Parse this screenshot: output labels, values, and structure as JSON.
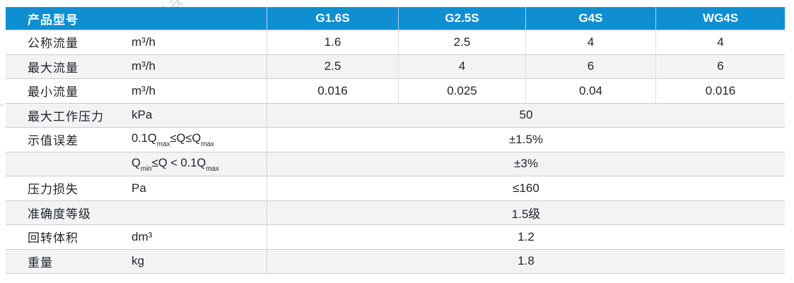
{
  "watermarks": {
    "stamp": "25-11-12 15:28:27  ZL-SH-PC-0443  数",
    "brand_fragment": "ZMTianhua",
    "edge_fragment": "数"
  },
  "table": {
    "header": {
      "label": "产品型号",
      "models": [
        "G1.6S",
        "G2.5S",
        "G4S",
        "WG4S"
      ]
    },
    "rows": [
      {
        "label": "公称流量",
        "unit": "m³/h",
        "values": [
          "1.6",
          "2.5",
          "4",
          "4"
        ]
      },
      {
        "label": "最大流量",
        "unit": "m³/h",
        "values": [
          "2.5",
          "4",
          "6",
          "6"
        ]
      },
      {
        "label": "最小流量",
        "unit": "m³/h",
        "values": [
          "0.016",
          "0.025",
          "0.04",
          "0.016"
        ]
      },
      {
        "label": "最大工作压力",
        "unit": "kPa",
        "merged": "50"
      },
      {
        "label": "示值误差",
        "condition": [
          {
            "text": "0.1Q"
          },
          {
            "text": "max",
            "sub": true
          },
          {
            "text": "≤Q≤Q"
          },
          {
            "text": "max",
            "sub": true
          }
        ],
        "merged": "±1.5%"
      },
      {
        "label": "",
        "condition": [
          {
            "text": "Q"
          },
          {
            "text": "min",
            "sub": true
          },
          {
            "text": "≤Q < 0.1Q"
          },
          {
            "text": "max",
            "sub": true
          }
        ],
        "merged": "±3%"
      },
      {
        "label": "压力损失",
        "unit": "Pa",
        "merged": "≤160"
      },
      {
        "label": "准确度等级",
        "unit": "",
        "merged": "1.5级"
      },
      {
        "label": "回转体积",
        "unit": "dm³",
        "merged": "1.2"
      },
      {
        "label": "重量",
        "unit": "kg",
        "merged": "1.8"
      }
    ]
  }
}
